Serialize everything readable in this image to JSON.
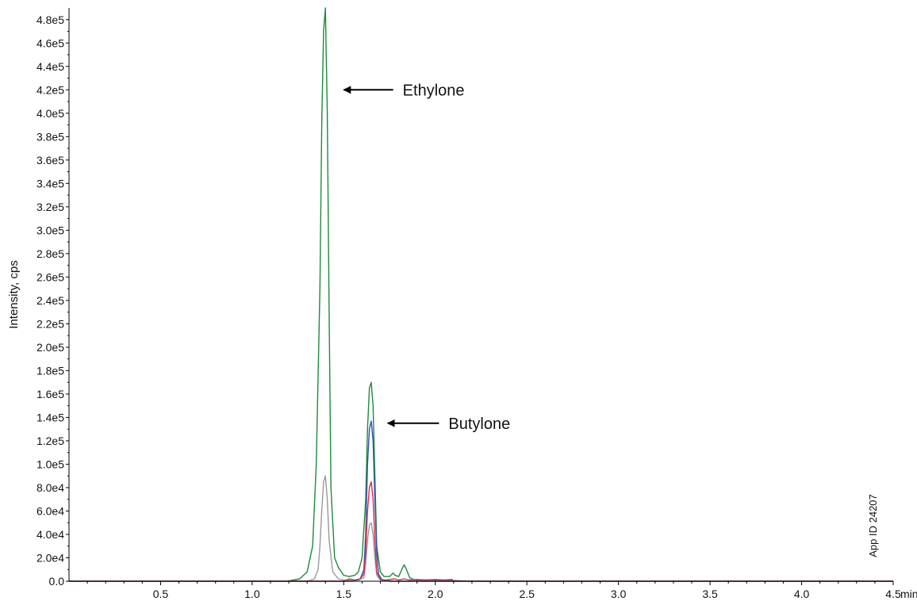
{
  "chart_data": {
    "type": "line",
    "title": "",
    "xlabel": "min",
    "ylabel": "Intensity, cps",
    "xlim": [
      0,
      4.5
    ],
    "ylim": [
      0,
      490000
    ],
    "grid": false,
    "legend": "none",
    "x_ticks": [
      {
        "value": 0.5,
        "label": "0.5"
      },
      {
        "value": 1.0,
        "label": "1.0"
      },
      {
        "value": 1.5,
        "label": "1.5"
      },
      {
        "value": 2.0,
        "label": "2.0"
      },
      {
        "value": 2.5,
        "label": "2.5"
      },
      {
        "value": 3.0,
        "label": "3.0"
      },
      {
        "value": 3.5,
        "label": "3.5"
      },
      {
        "value": 4.0,
        "label": "4.0"
      },
      {
        "value": 4.5,
        "label": "4.5"
      }
    ],
    "y_ticks": [
      {
        "value": 0,
        "label": "0.0"
      },
      {
        "value": 20000,
        "label": "2.0e4"
      },
      {
        "value": 40000,
        "label": "4.0e4"
      },
      {
        "value": 60000,
        "label": "6.0e4"
      },
      {
        "value": 80000,
        "label": "8.0e4"
      },
      {
        "value": 100000,
        "label": "1.0e5"
      },
      {
        "value": 120000,
        "label": "1.2e5"
      },
      {
        "value": 140000,
        "label": "1.4e5"
      },
      {
        "value": 160000,
        "label": "1.6e5"
      },
      {
        "value": 180000,
        "label": "1.8e5"
      },
      {
        "value": 200000,
        "label": "2.0e5"
      },
      {
        "value": 220000,
        "label": "2.2e5"
      },
      {
        "value": 240000,
        "label": "2.4e5"
      },
      {
        "value": 260000,
        "label": "2.6e5"
      },
      {
        "value": 280000,
        "label": "2.8e5"
      },
      {
        "value": 300000,
        "label": "3.0e5"
      },
      {
        "value": 320000,
        "label": "3.2e5"
      },
      {
        "value": 340000,
        "label": "3.4e5"
      },
      {
        "value": 360000,
        "label": "3.6e5"
      },
      {
        "value": 380000,
        "label": "3.8e5"
      },
      {
        "value": 400000,
        "label": "4.0e5"
      },
      {
        "value": 420000,
        "label": "4.2e5"
      },
      {
        "value": 440000,
        "label": "4.4e5"
      },
      {
        "value": 460000,
        "label": "4.6e5"
      },
      {
        "value": 480000,
        "label": "4.8e5"
      }
    ],
    "series": [
      {
        "color": "#1e8a3e",
        "x": [
          0.0,
          1.19,
          1.26,
          1.3,
          1.33,
          1.35,
          1.37,
          1.38,
          1.39,
          1.4,
          1.41,
          1.42,
          1.43,
          1.45,
          1.47,
          1.5,
          1.53,
          1.56,
          1.58,
          1.6,
          1.62,
          1.63,
          1.64,
          1.65,
          1.66,
          1.67,
          1.68,
          1.7,
          1.72,
          1.75,
          1.77,
          1.78,
          1.8,
          1.82,
          1.83,
          1.84,
          1.86,
          1.88,
          1.9,
          2.0,
          2.09,
          2.2,
          4.5
        ],
        "y": [
          0,
          0,
          2000,
          8000,
          30000,
          100000,
          250000,
          390000,
          470000,
          490000,
          400000,
          230000,
          80000,
          20000,
          12000,
          5000,
          4000,
          5000,
          8000,
          20000,
          70000,
          130000,
          165000,
          170000,
          150000,
          90000,
          30000,
          8000,
          4000,
          4000,
          7000,
          5000,
          4000,
          11000,
          14000,
          11000,
          3000,
          1500,
          1000,
          1000,
          600,
          0,
          0
        ]
      },
      {
        "color": "#999999",
        "x": [
          0.0,
          1.3,
          1.34,
          1.36,
          1.37,
          1.38,
          1.39,
          1.4,
          1.41,
          1.42,
          1.44,
          1.47,
          1.5,
          1.58,
          1.61,
          1.62,
          1.63,
          1.64,
          1.65,
          1.66,
          1.67,
          1.68,
          1.7,
          1.75,
          2.0,
          4.5
        ],
        "y": [
          0,
          0,
          2000,
          10000,
          30000,
          60000,
          85000,
          90000,
          70000,
          35000,
          8000,
          2000,
          1000,
          1000,
          3000,
          15000,
          35000,
          48000,
          50000,
          40000,
          20000,
          5000,
          1000,
          0,
          0,
          0
        ]
      },
      {
        "color": "#2f54b5",
        "x": [
          0.0,
          1.55,
          1.59,
          1.61,
          1.62,
          1.63,
          1.64,
          1.65,
          1.66,
          1.67,
          1.68,
          1.69,
          1.71,
          1.75,
          4.5
        ],
        "y": [
          0,
          0,
          2000,
          10000,
          40000,
          100000,
          130000,
          137000,
          120000,
          70000,
          25000,
          6000,
          1000,
          0,
          0
        ]
      },
      {
        "color": "#e0284a",
        "x": [
          0.0,
          1.5,
          1.53,
          1.56,
          1.59,
          1.61,
          1.62,
          1.63,
          1.64,
          1.65,
          1.66,
          1.67,
          1.68,
          1.7,
          1.73,
          1.78,
          1.8,
          1.83,
          1.86,
          1.9,
          1.95,
          2.0,
          2.05,
          2.09,
          2.1,
          4.5
        ],
        "y": [
          0,
          0,
          2000,
          1000,
          2000,
          6000,
          25000,
          60000,
          80000,
          85000,
          70000,
          35000,
          8000,
          1500,
          1000,
          2000,
          1000,
          2000,
          1000,
          1500,
          1000,
          1500,
          1000,
          1500,
          0,
          0
        ]
      }
    ],
    "annotations": [
      {
        "text": "Ethylone",
        "arrow_tip": {
          "x": 1.5,
          "y": 420000
        },
        "arrow_tail": {
          "x": 1.77,
          "y": 420000
        }
      },
      {
        "text": "Butylone",
        "arrow_tip": {
          "x": 1.74,
          "y": 135000
        },
        "arrow_tail": {
          "x": 2.02,
          "y": 135000
        }
      }
    ],
    "side_text": "App ID 24207"
  }
}
